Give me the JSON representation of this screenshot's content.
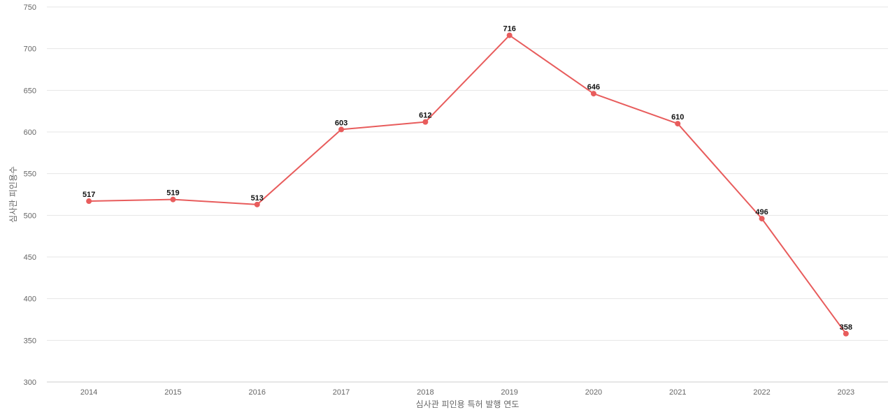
{
  "chart_data": {
    "type": "line",
    "title": "",
    "xlabel": "심사관 피인용 특허 발행 연도",
    "ylabel": "심사관 피인용수",
    "categories": [
      "2014",
      "2015",
      "2016",
      "2017",
      "2018",
      "2019",
      "2020",
      "2021",
      "2022",
      "2023"
    ],
    "series": [
      {
        "values": [
          517,
          519,
          513,
          603,
          612,
          716,
          646,
          610,
          496,
          358
        ]
      }
    ],
    "ylim": [
      300,
      750
    ],
    "yticks": [
      300,
      350,
      400,
      450,
      500,
      550,
      600,
      650,
      700,
      750
    ],
    "grid": true,
    "legend": "none",
    "data_labels": true,
    "colors": {
      "line": "#e85c5c",
      "grid": "#e6e6e6",
      "text": "#666666"
    }
  }
}
